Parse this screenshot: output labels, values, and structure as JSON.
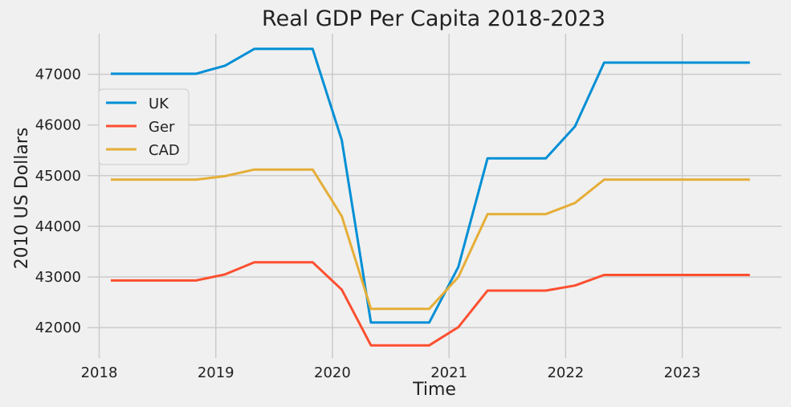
{
  "chart_data": {
    "type": "line",
    "title": "Real GDP Per Capita 2018-2023",
    "xlabel": "Time",
    "ylabel": "2010 US Dollars",
    "x_ticks": [
      "2018",
      "2019",
      "2020",
      "2021",
      "2022",
      "2023"
    ],
    "y_ticks": [
      "42000",
      "43000",
      "44000",
      "45000",
      "46000",
      "47000"
    ],
    "xlim": [
      2017.9,
      2023.85
    ],
    "ylim": [
      41400,
      47800
    ],
    "grid": true,
    "legend_position": "upper-left",
    "x": [
      2018.1,
      2018.83,
      2019.08,
      2019.33,
      2019.83,
      2020.08,
      2020.33,
      2020.83,
      2021.08,
      2021.33,
      2021.83,
      2022.08,
      2022.33,
      2022.83,
      2023.58
    ],
    "series": [
      {
        "name": "UK",
        "color": "#008fd5",
        "values": [
          47010,
          47010,
          47170,
          47500,
          47500,
          45700,
          42100,
          42100,
          43200,
          45340,
          45340,
          45970,
          47230,
          47230,
          47230
        ]
      },
      {
        "name": "Ger",
        "color": "#fc4f30",
        "values": [
          42930,
          42930,
          43050,
          43290,
          43290,
          42750,
          41650,
          41650,
          42010,
          42730,
          42730,
          42830,
          43040,
          43040,
          43040
        ]
      },
      {
        "name": "CAD",
        "color": "#e5ae38",
        "values": [
          44920,
          44920,
          44990,
          45120,
          45120,
          44200,
          42370,
          42370,
          43000,
          44240,
          44240,
          44460,
          44920,
          44920,
          44920
        ]
      }
    ]
  }
}
